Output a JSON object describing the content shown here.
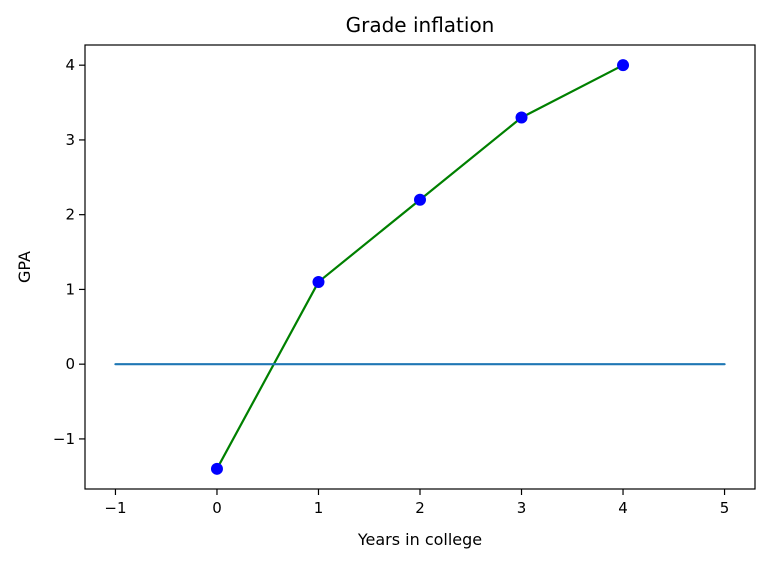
{
  "chart_data": {
    "type": "line",
    "title": "Grade inflation",
    "xlabel": "Years in college",
    "ylabel": "GPA",
    "xlim": [
      -1.3,
      5.3
    ],
    "ylim": [
      -1.67,
      4.27
    ],
    "xticks": [
      -1,
      0,
      1,
      2,
      3,
      4,
      5
    ],
    "xtick_labels": [
      "−1",
      "0",
      "1",
      "2",
      "3",
      "4",
      "5"
    ],
    "yticks": [
      -1,
      0,
      1,
      2,
      3,
      4
    ],
    "ytick_labels": [
      "−1",
      "0",
      "1",
      "2",
      "3",
      "4"
    ],
    "grid": false,
    "series": [
      {
        "x": [
          0,
          1,
          2,
          3,
          4
        ],
        "y": [
          -1.4,
          1.1,
          2.2,
          3.3,
          4.0
        ],
        "line_color": "#008000",
        "marker_color": "#0000ff"
      },
      {
        "x": [
          -1,
          5
        ],
        "y": [
          0,
          0
        ],
        "line_color": "#1f77b4"
      }
    ]
  }
}
